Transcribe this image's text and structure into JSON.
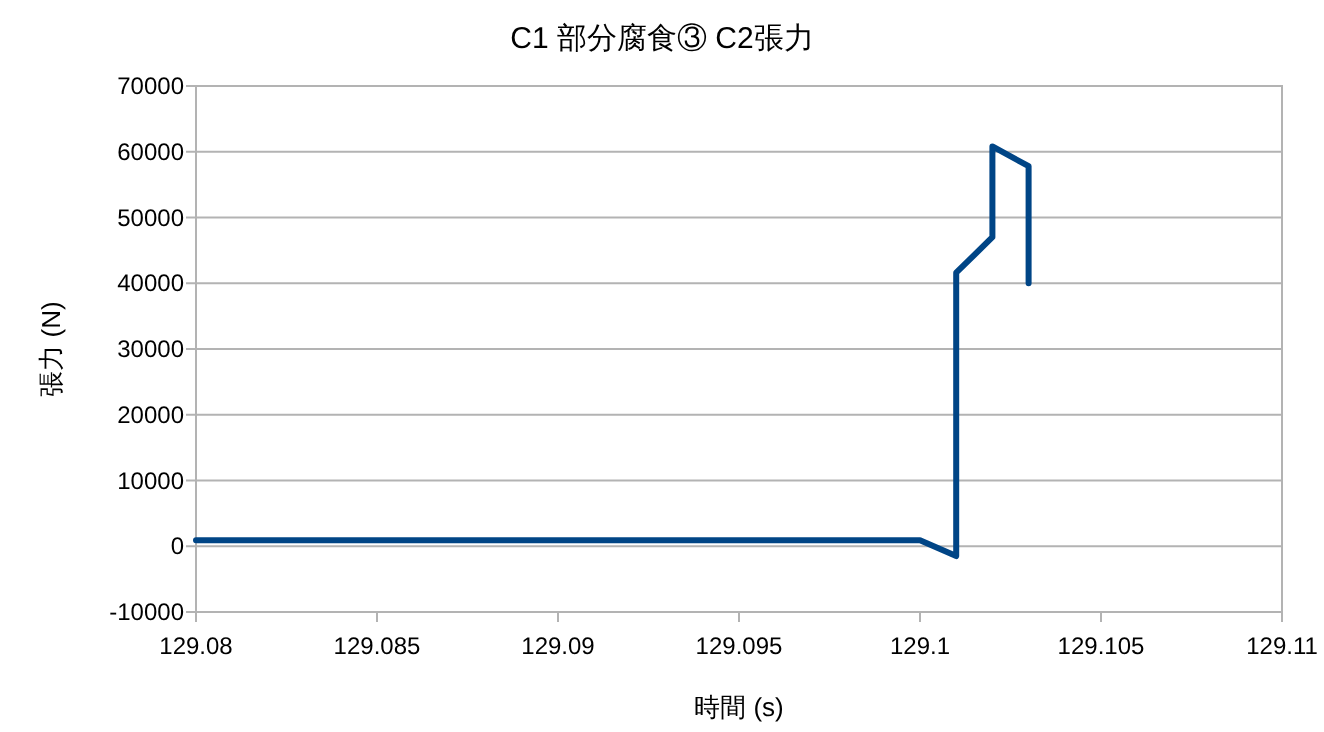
{
  "chart_data": {
    "type": "line",
    "title": "C1 部分腐食③ C2張力",
    "xlabel": "時間 (s)",
    "ylabel": "張力 (N)",
    "x": [
      129.08,
      129.1,
      129.101,
      129.101,
      129.102,
      129.102,
      129.103,
      129.103
    ],
    "series": [
      {
        "color": "#004586",
        "values": [
          900,
          900,
          -1500,
          41600,
          47000,
          60800,
          57800,
          40000
        ]
      }
    ],
    "xlim": [
      129.08,
      129.11
    ],
    "xticks": [
      129.08,
      129.085,
      129.09,
      129.095,
      129.1,
      129.105,
      129.11
    ],
    "ylim": [
      -10000,
      70000
    ],
    "yticks": [
      -10000,
      0,
      10000,
      20000,
      30000,
      40000,
      50000,
      60000,
      70000
    ],
    "grid": "y",
    "marker": "none",
    "line_style": "solid"
  }
}
